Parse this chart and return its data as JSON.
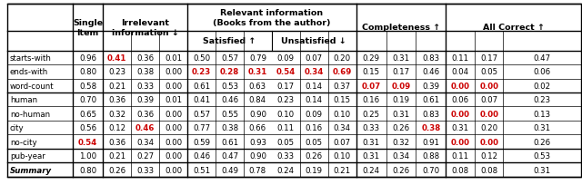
{
  "rows": [
    {
      "label": "starts-with",
      "data": [
        "0.96",
        "0.41",
        "0.36",
        "0.01",
        "0.50",
        "0.57",
        "0.79",
        "0.09",
        "0.07",
        "0.20",
        "0.29",
        "0.31",
        "0.83",
        "0.11",
        "0.17",
        "0.47"
      ],
      "red": [
        1
      ]
    },
    {
      "label": "ends-with",
      "data": [
        "0.80",
        "0.23",
        "0.38",
        "0.00",
        "0.23",
        "0.28",
        "0.31",
        "0.54",
        "0.34",
        "0.69",
        "0.15",
        "0.17",
        "0.46",
        "0.04",
        "0.05",
        "0.06"
      ],
      "red": [
        4,
        5,
        6,
        7,
        8,
        9
      ]
    },
    {
      "label": "word-count",
      "data": [
        "0.58",
        "0.21",
        "0.33",
        "0.00",
        "0.61",
        "0.53",
        "0.63",
        "0.17",
        "0.14",
        "0.37",
        "0.07",
        "0.09",
        "0.39",
        "0.00",
        "0.00",
        "0.02"
      ],
      "red": [
        10,
        11,
        13,
        14
      ]
    },
    {
      "label": "human",
      "data": [
        "0.70",
        "0.36",
        "0.39",
        "0.01",
        "0.41",
        "0.46",
        "0.84",
        "0.23",
        "0.14",
        "0.15",
        "0.16",
        "0.19",
        "0.61",
        "0.06",
        "0.07",
        "0.23"
      ],
      "red": []
    },
    {
      "label": "no-human",
      "data": [
        "0.65",
        "0.32",
        "0.36",
        "0.00",
        "0.57",
        "0.55",
        "0.90",
        "0.10",
        "0.09",
        "0.10",
        "0.25",
        "0.31",
        "0.83",
        "0.00",
        "0.00",
        "0.13"
      ],
      "red": [
        13,
        14
      ]
    },
    {
      "label": "city",
      "data": [
        "0.56",
        "0.12",
        "0.46",
        "0.00",
        "0.77",
        "0.38",
        "0.66",
        "0.11",
        "0.16",
        "0.34",
        "0.33",
        "0.26",
        "0.38",
        "0.31",
        "0.20",
        "0.31"
      ],
      "red": [
        2,
        12
      ]
    },
    {
      "label": "no-city",
      "data": [
        "0.54",
        "0.36",
        "0.34",
        "0.00",
        "0.59",
        "0.61",
        "0.93",
        "0.05",
        "0.05",
        "0.07",
        "0.31",
        "0.32",
        "0.91",
        "0.00",
        "0.00",
        "0.26"
      ],
      "red": [
        0,
        13,
        14
      ]
    },
    {
      "label": "pub-year",
      "data": [
        "1.00",
        "0.21",
        "0.27",
        "0.00",
        "0.46",
        "0.47",
        "0.90",
        "0.33",
        "0.26",
        "0.10",
        "0.31",
        "0.34",
        "0.88",
        "0.11",
        "0.12",
        "0.53"
      ],
      "red": []
    },
    {
      "label": "Summary",
      "data": [
        "0.80",
        "0.26",
        "0.33",
        "0.00",
        "0.51",
        "0.49",
        "0.78",
        "0.24",
        "0.19",
        "0.21",
        "0.24",
        "0.26",
        "0.70",
        "0.08",
        "0.08",
        "0.31"
      ],
      "red": []
    }
  ],
  "background_color": "#ffffff",
  "red_color": "#cc0000"
}
